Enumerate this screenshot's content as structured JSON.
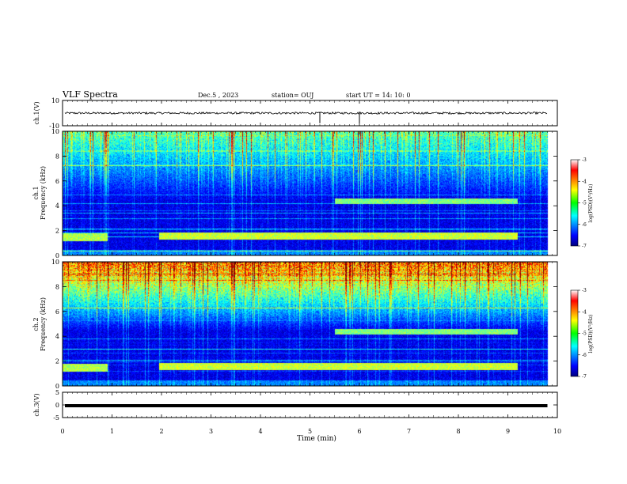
{
  "header": {
    "title": "VLF Spectra",
    "date": "Dec.5  , 2023",
    "station": "station= OUJ",
    "start": "start  UT =   14: 10: 0"
  },
  "chart_data": [
    {
      "type": "line",
      "name": "ch1-waveform",
      "ylabel": "ch.1(V)",
      "ylim": [
        -10,
        10
      ],
      "yticks": [
        "10",
        "-10"
      ],
      "baseline": 0,
      "spikes_x_min": [
        5.2,
        6.0
      ]
    },
    {
      "type": "heatmap",
      "name": "ch1-spectrogram",
      "ylabel": "ch.1",
      "ylabel2": "Frequency (kHz)",
      "ylim": [
        0,
        10
      ],
      "yticks": [
        "0",
        "2",
        "4",
        "6",
        "8",
        "10"
      ],
      "data_end_min": 9.8,
      "bands": [
        {
          "x": [
            0,
            0.9
          ],
          "f": [
            1.2,
            1.8
          ],
          "level": -4.8
        },
        {
          "x": [
            1.95,
            9.2
          ],
          "f": [
            1.3,
            1.9
          ],
          "level": -4.7
        },
        {
          "x": [
            5.5,
            9.2
          ],
          "f": [
            4.2,
            4.6
          ],
          "level": -5.0
        }
      ],
      "colorbar": {
        "label": "log(PSD)(V²/Hz)",
        "ticks": [
          "-3",
          "-4",
          "-5",
          "-6",
          "-7"
        ],
        "range": [
          -7,
          -3
        ]
      }
    },
    {
      "type": "heatmap",
      "name": "ch2-spectrogram",
      "ylabel": "ch.2",
      "ylabel2": "Frequency (kHz)",
      "ylim": [
        0,
        10
      ],
      "yticks": [
        "0",
        "2",
        "4",
        "6",
        "8",
        "10"
      ],
      "data_end_min": 9.8,
      "bands": [
        {
          "x": [
            0,
            0.9
          ],
          "f": [
            1.2,
            1.8
          ],
          "level": -4.8
        },
        {
          "x": [
            1.95,
            9.2
          ],
          "f": [
            1.3,
            1.9
          ],
          "level": -4.7
        },
        {
          "x": [
            5.5,
            9.2
          ],
          "f": [
            4.2,
            4.6
          ],
          "level": -5.0
        }
      ],
      "colorbar": {
        "label": "log(PSD)(V²/Hz)",
        "ticks": [
          "-3",
          "-4",
          "-5",
          "-6",
          "-7"
        ],
        "range": [
          -7,
          -3
        ]
      }
    },
    {
      "type": "line",
      "name": "ch3-waveform",
      "ylabel": "ch.3(V)",
      "ylim": [
        -5,
        5
      ],
      "yticks": [
        "5",
        "0",
        "-5"
      ],
      "baseline": -0.3
    }
  ],
  "xaxis": {
    "label": "Time  (min)",
    "range": [
      0,
      10
    ],
    "ticks": [
      "0",
      "1",
      "2",
      "3",
      "4",
      "5",
      "6",
      "7",
      "8",
      "9",
      "10"
    ]
  }
}
